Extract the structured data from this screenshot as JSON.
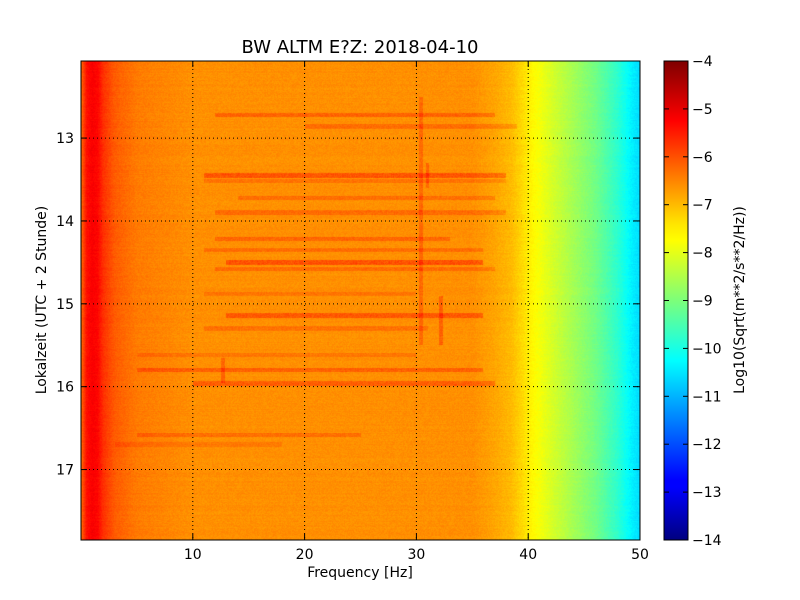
{
  "chart_data": {
    "type": "heatmap",
    "title": "BW ALTM E?Z: 2018-04-10",
    "xlabel": "Frequency [Hz]",
    "ylabel": "Lokalzeit (UTC + 2 Stunde)",
    "colorbar_label": "Log10(Sqrt(m**2/s**2/Hz))",
    "xlim": [
      0,
      50
    ],
    "ylim": [
      12.07,
      17.85
    ],
    "y_inverted": true,
    "x_ticks": [
      10,
      20,
      30,
      40,
      50
    ],
    "y_ticks": [
      13,
      14,
      15,
      16,
      17
    ],
    "colorbar_range": [
      -14,
      -4
    ],
    "colorbar_ticks": [
      -4,
      -5,
      -6,
      -7,
      -8,
      -9,
      -10,
      -11,
      -12,
      -13,
      -14
    ],
    "colormap": "jet",
    "grid": true,
    "grid_style": "dotted",
    "spectrum_profile": {
      "frequency_hz": [
        0,
        0.5,
        1,
        1.5,
        2,
        3,
        5,
        10,
        20,
        30,
        35,
        37,
        38.5,
        39.5,
        40.5,
        42,
        44,
        46,
        48,
        49.3,
        50
      ],
      "log10_value": [
        -6.3,
        -5.4,
        -5.2,
        -5.3,
        -5.7,
        -6.1,
        -6.4,
        -6.6,
        -6.6,
        -6.6,
        -6.6,
        -6.8,
        -7.0,
        -7.3,
        -7.7,
        -8.1,
        -8.6,
        -9.1,
        -9.8,
        -10.4,
        -10.6
      ]
    },
    "horizontal_bands": [
      {
        "time": 12.72,
        "f_start": 12,
        "f_end": 37,
        "delta": 0.55
      },
      {
        "time": 12.86,
        "f_start": 20,
        "f_end": 39,
        "delta": 0.4
      },
      {
        "time": 13.45,
        "f_start": 11,
        "f_end": 38,
        "delta": 0.7
      },
      {
        "time": 13.52,
        "f_start": 11,
        "f_end": 38,
        "delta": 0.35
      },
      {
        "time": 13.72,
        "f_start": 14,
        "f_end": 37,
        "delta": 0.4
      },
      {
        "time": 13.9,
        "f_start": 12,
        "f_end": 38,
        "delta": 0.45
      },
      {
        "time": 14.22,
        "f_start": 12,
        "f_end": 33,
        "delta": 0.5
      },
      {
        "time": 14.35,
        "f_start": 11,
        "f_end": 36,
        "delta": 0.4
      },
      {
        "time": 14.5,
        "f_start": 13,
        "f_end": 36,
        "delta": 0.75
      },
      {
        "time": 14.58,
        "f_start": 12,
        "f_end": 37,
        "delta": 0.4
      },
      {
        "time": 14.88,
        "f_start": 11,
        "f_end": 30,
        "delta": 0.3
      },
      {
        "time": 15.14,
        "f_start": 13,
        "f_end": 36,
        "delta": 0.65
      },
      {
        "time": 15.3,
        "f_start": 11,
        "f_end": 31,
        "delta": 0.35
      },
      {
        "time": 15.62,
        "f_start": 5,
        "f_end": 30,
        "delta": 0.3
      },
      {
        "time": 15.8,
        "f_start": 5,
        "f_end": 36,
        "delta": 0.55
      },
      {
        "time": 15.96,
        "f_start": 10,
        "f_end": 37,
        "delta": 0.6
      },
      {
        "time": 16.58,
        "f_start": 5,
        "f_end": 25,
        "delta": 0.4
      },
      {
        "time": 16.7,
        "f_start": 3,
        "f_end": 18,
        "delta": 0.25
      }
    ],
    "vertical_lines": [
      {
        "freq": 30.4,
        "t_start": 12.5,
        "t_end": 15.5,
        "delta": 0.45
      },
      {
        "freq": 31.0,
        "t_start": 13.3,
        "t_end": 13.6,
        "delta": 0.5
      },
      {
        "freq": 32.2,
        "t_start": 14.9,
        "t_end": 15.5,
        "delta": 0.55
      },
      {
        "freq": 12.7,
        "t_start": 15.65,
        "t_end": 15.95,
        "delta": 0.5
      }
    ]
  }
}
